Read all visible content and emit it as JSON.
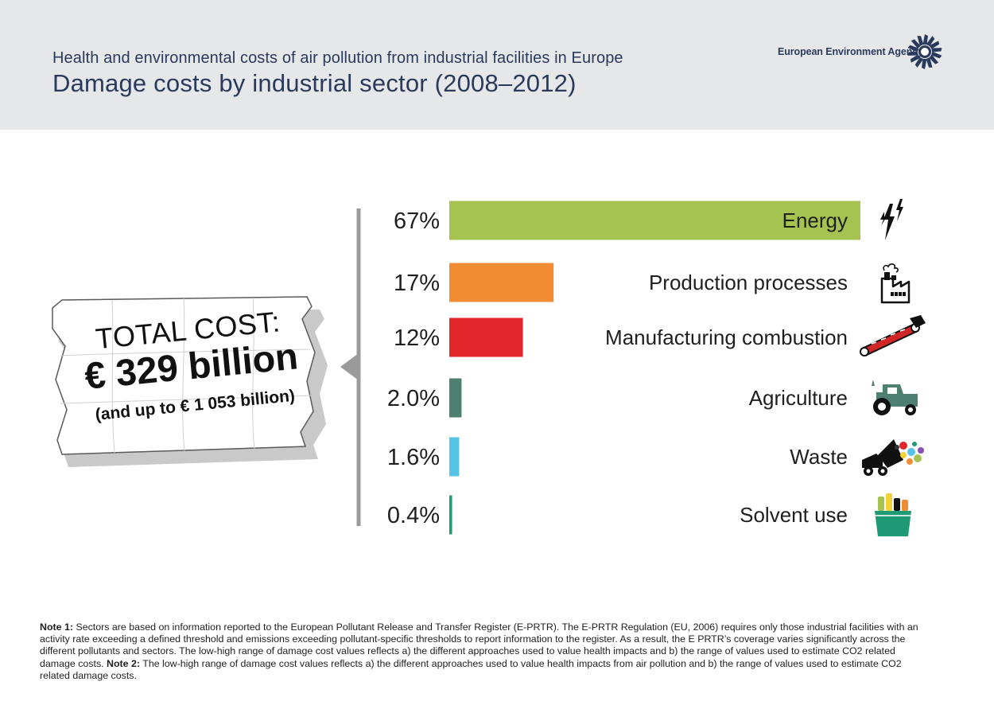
{
  "header": {
    "subtitle": "Health and environmental costs of air pollution from industrial facilities in Europe",
    "title": "Damage costs by industrial sector (2008–2012)",
    "brand": "European Environment Agency"
  },
  "callout": {
    "line1": "TOTAL COST:",
    "line2": "€ 329 billion",
    "line3": "(and up to € 1 053 billion)"
  },
  "chart_data": {
    "type": "bar",
    "orientation": "horizontal",
    "unit": "%",
    "categories": [
      "Energy",
      "Production processes",
      "Manufacturing combustion",
      "Agriculture",
      "Waste",
      "Solvent use"
    ],
    "values": [
      67,
      17,
      12,
      2.0,
      1.6,
      0.4
    ],
    "value_labels": [
      "67%",
      "17%",
      "12%",
      "2.0%",
      "1.6%",
      "0.4%"
    ],
    "colors": [
      "#a4c350",
      "#f28c34",
      "#e0262a",
      "#4e8071",
      "#56c2e6",
      "#1e9a76"
    ],
    "icons": [
      "lightning-icon",
      "factory-icon",
      "conveyor-icon",
      "tractor-icon",
      "waste-truck-icon",
      "solvent-basket-icon"
    ]
  },
  "notes": {
    "note1_label": "Note 1:",
    "note1_text": " Sectors are based on information reported to the European Pollutant Release and Transfer Register (E-PRTR). The E-PRTR Regulation (EU, 2006) requires only those industrial facilities with an activity rate exceeding a defined threshold and emissions exceeding pollutant-specific thresholds to report information to the register. As a result, the E PRTR’s coverage varies significantly across the different pollutants and sectors. The low-high range of damage cost values reflects a) the different approaches used to value health impacts and b) the range of values used to estimate CO2 related damage costs. ",
    "note2_label": "Note 2:",
    "note2_text": " The low-high range of damage cost values reflects a) the different approaches used to value health impacts from air pollution and b) the range of values used to estimate CO2 related damage costs."
  }
}
